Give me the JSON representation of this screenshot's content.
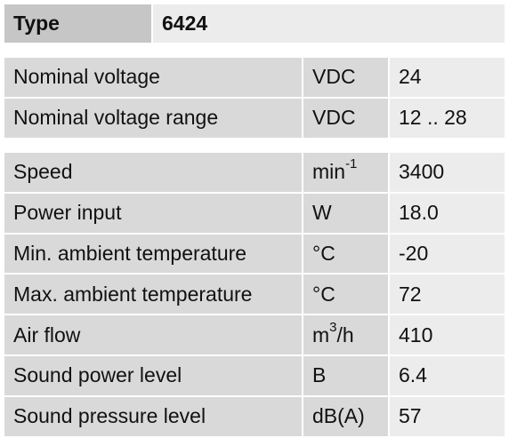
{
  "header": {
    "key": "Type",
    "value": "6424"
  },
  "groups": [
    {
      "rows": [
        {
          "label": "Nominal voltage",
          "unit": "VDC",
          "value": "24"
        },
        {
          "label": "Nominal voltage range",
          "unit": "VDC",
          "value": "12 .. 28"
        }
      ]
    },
    {
      "rows": [
        {
          "label": "Speed",
          "unit": {
            "base": "min",
            "sup": "-1"
          },
          "value": "3400"
        },
        {
          "label": "Power input",
          "unit": "W",
          "value": "18.0"
        },
        {
          "label": "Min. ambient temperature",
          "unit": "°C",
          "value": "-20"
        },
        {
          "label": "Max. ambient temperature",
          "unit": "°C",
          "value": "72"
        },
        {
          "label": "Air flow",
          "unit": {
            "base": "m",
            "sup": "3",
            "tail": "/h"
          },
          "value": "410"
        },
        {
          "label": "Sound power level",
          "unit": "B",
          "value": "6.4"
        },
        {
          "label": "Sound pressure level",
          "unit": "dB(A)",
          "value": "57"
        }
      ]
    }
  ]
}
